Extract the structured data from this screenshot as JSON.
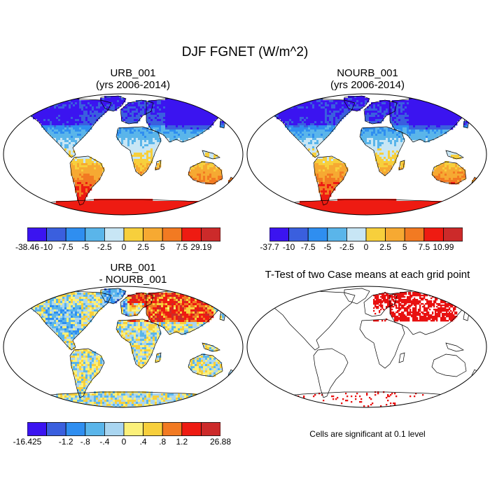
{
  "figure": {
    "title": "DJF FGNET (W/m^2)",
    "significance_note": "Cells are significant at 0.1 level"
  },
  "panels": [
    {
      "id": "urb",
      "title_line1": "URB_001",
      "title_line2": "(yrs 2006-2014)",
      "field": "absolute",
      "colorbar": {
        "labels": [
          "-38.46",
          "-10",
          "-7.5",
          "-5",
          "-2.5",
          "0",
          "2.5",
          "5",
          "7.5",
          "29.19"
        ],
        "colors": [
          "#3b14f0",
          "#3a5fde",
          "#2f8ef0",
          "#5ab5ea",
          "#c8e6f5",
          "#f7cf3c",
          "#f6a932",
          "#f27a22",
          "#ee1b12",
          "#cc2a2a"
        ]
      }
    },
    {
      "id": "nourb",
      "title_line1": "NOURB_001",
      "title_line2": "(yrs 2006-2014)",
      "field": "absolute",
      "colorbar": {
        "labels": [
          "-37.7",
          "-10",
          "-7.5",
          "-5",
          "-2.5",
          "0",
          "2.5",
          "5",
          "7.5",
          "10.99"
        ],
        "colors": [
          "#3b14f0",
          "#3a5fde",
          "#2f8ef0",
          "#5ab5ea",
          "#c8e6f5",
          "#f7cf3c",
          "#f6a932",
          "#f27a22",
          "#ee1b12",
          "#cc2a2a"
        ]
      }
    },
    {
      "id": "diff",
      "title_line1": "URB_001",
      "title_line2": "- NOURB_001",
      "field": "difference",
      "colorbar": {
        "labels": [
          "-16.425",
          "-1.2",
          "-.8",
          "-.4",
          "0",
          ".4",
          ".8",
          "1.2",
          "26.88"
        ],
        "label_slots": [
          0,
          2,
          3,
          4,
          5,
          6,
          7,
          8,
          10
        ],
        "colors": [
          "#3b14f0",
          "#3a5fde",
          "#2f8ef0",
          "#5ab5ea",
          "#a9d5f0",
          "#fbf07a",
          "#f7cf3c",
          "#f27a22",
          "#ee1b12",
          "#cc2a2a"
        ]
      }
    },
    {
      "id": "ttest",
      "title_line1": "T-Test of two Case means at each grid point",
      "field": "significance",
      "mark_color": "#e81010"
    }
  ]
}
